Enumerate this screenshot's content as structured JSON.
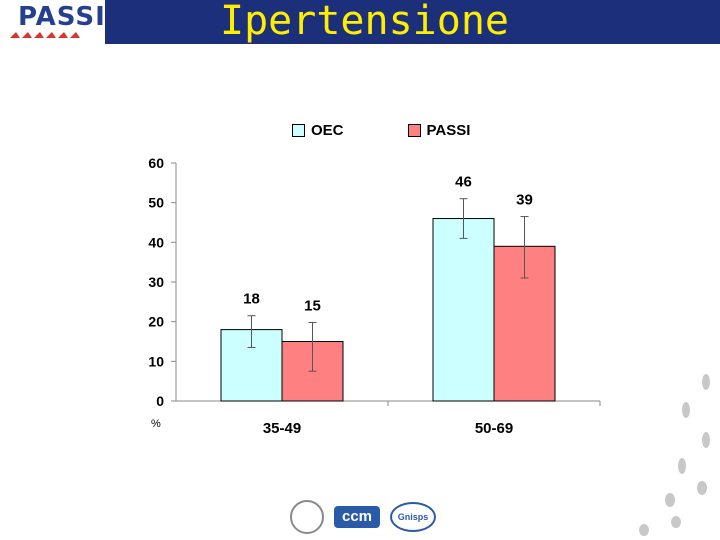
{
  "header": {
    "logo_text": "PASSI",
    "title": "Ipertensione"
  },
  "colors": {
    "header_bg": "#1c2f7a",
    "title": "#ffee00",
    "oec": "#ccffff",
    "passi": "#ff8080"
  },
  "chart_data": {
    "type": "bar",
    "title": "",
    "xlabel": "",
    "ylabel": "%",
    "ylim": [
      0,
      60
    ],
    "yticks": [
      0,
      10,
      20,
      30,
      40,
      50,
      60
    ],
    "categories": [
      "35-49",
      "50-69"
    ],
    "series": [
      {
        "name": "OEC",
        "values": [
          18,
          46
        ],
        "error_low": [
          13.5,
          41
        ],
        "error_high": [
          21.5,
          51
        ],
        "color": "#ccffff"
      },
      {
        "name": "PASSI",
        "values": [
          15,
          39
        ],
        "error_low": [
          7.5,
          31
        ],
        "error_high": [
          19.8,
          46.5
        ],
        "color": "#ff8080"
      }
    ],
    "data_labels": [
      [
        "18",
        "15"
      ],
      [
        "46",
        "39"
      ]
    ],
    "legend_position": "top"
  },
  "footer": {
    "logo_ccm": "ccm",
    "logo_genisps": "Gnisps"
  }
}
